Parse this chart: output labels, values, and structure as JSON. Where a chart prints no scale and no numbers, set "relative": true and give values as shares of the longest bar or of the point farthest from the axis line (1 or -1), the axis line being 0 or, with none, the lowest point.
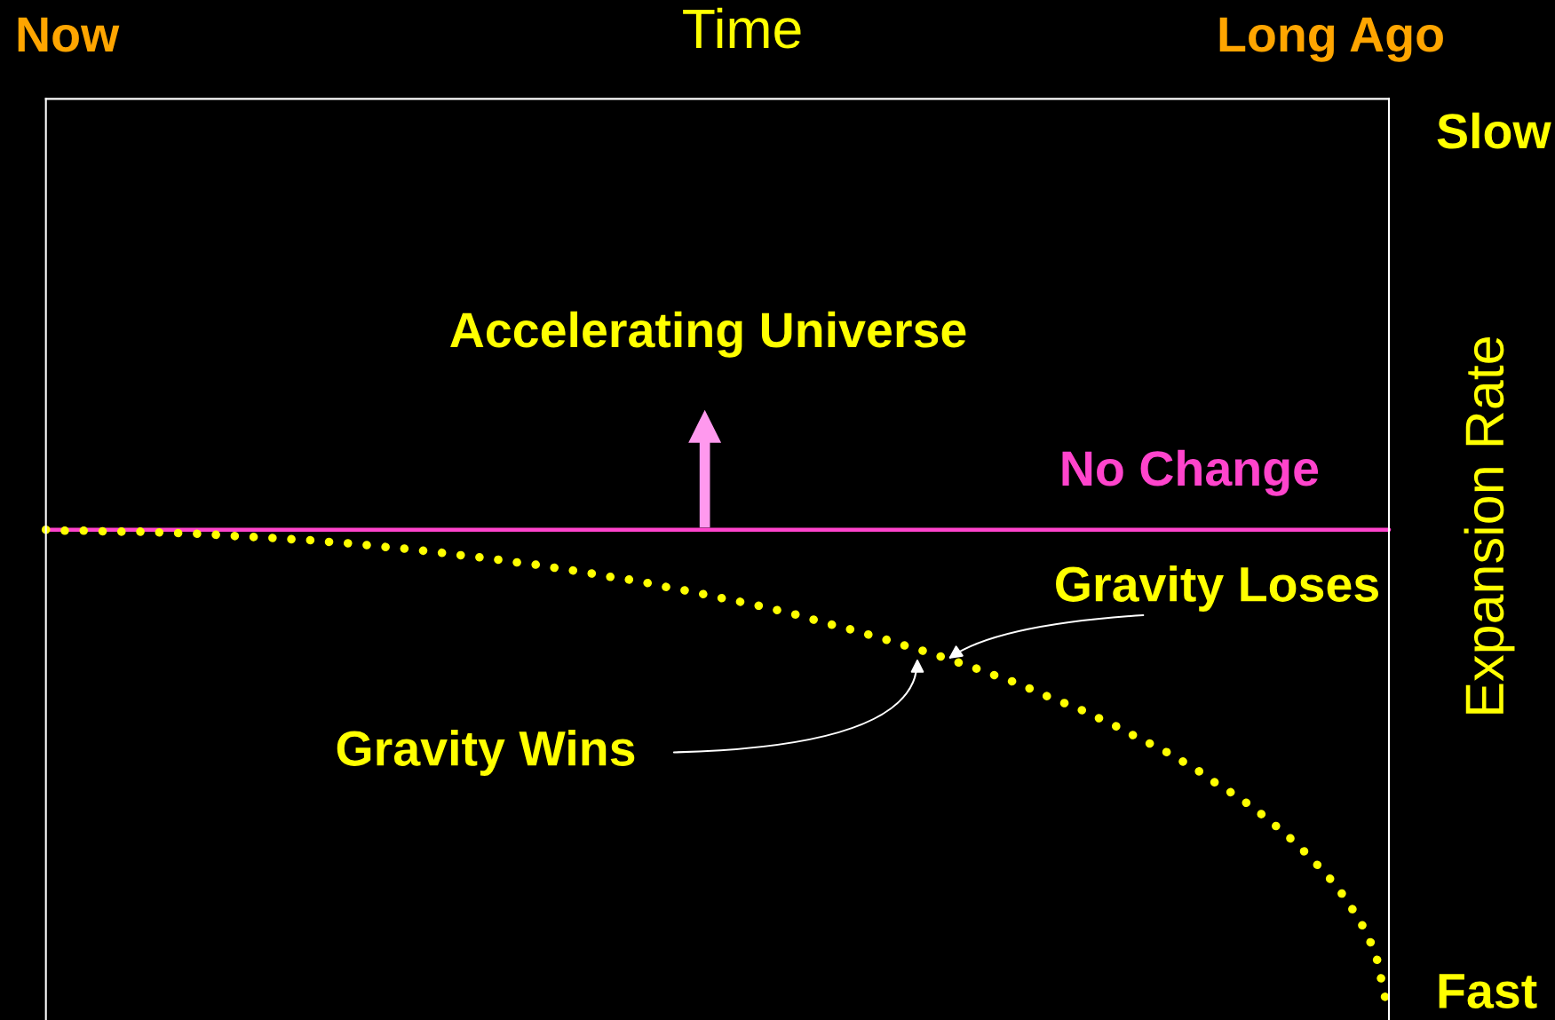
{
  "chart_data": {
    "type": "line",
    "relative": true,
    "ylabel": "Expansion Rate",
    "categories": [
      null,
      null,
      null,
      null,
      null,
      null,
      null,
      null,
      null,
      null,
      null,
      null,
      null,
      null,
      null,
      null,
      null,
      null,
      null,
      null,
      null,
      null,
      null,
      null,
      null,
      null,
      null,
      null,
      null,
      null,
      null,
      null,
      null,
      null,
      null,
      null,
      null,
      null,
      null,
      null,
      null,
      null,
      null,
      null,
      null,
      null,
      null,
      null,
      null,
      null,
      null,
      null,
      null,
      null,
      null,
      null,
      null,
      null,
      null,
      null,
      null,
      null,
      null,
      null,
      null,
      null,
      null,
      null,
      null,
      null,
      null,
      null,
      null,
      null,
      null,
      null,
      null,
      null,
      null,
      null,
      null,
      null,
      null,
      null,
      null,
      null,
      null,
      null,
      null,
      null,
      null,
      null,
      null,
      null,
      null,
      null,
      null,
      null,
      null,
      null,
      null
    ],
    "series": [
      {
        "name": "No Change",
        "color": "#ff44cc",
        "line_style": "solid",
        "values": [
          1,
          1,
          1,
          1,
          1,
          1,
          1,
          1,
          1,
          1,
          1,
          1,
          1,
          1,
          1,
          1,
          1,
          1,
          1,
          1,
          1,
          1,
          1,
          1,
          1,
          1,
          1,
          1,
          1,
          1,
          1,
          1,
          1,
          1,
          1,
          1,
          1,
          1,
          1,
          1,
          1,
          1,
          1,
          1,
          1,
          1,
          1,
          1,
          1,
          1,
          1,
          1,
          1,
          1,
          1,
          1,
          1,
          1,
          1,
          1,
          1,
          1,
          1,
          1,
          1,
          1,
          1,
          1,
          1,
          1,
          1,
          1,
          1,
          1,
          1,
          1,
          1,
          1,
          1,
          1,
          1,
          1,
          1,
          1,
          1,
          1,
          1,
          1,
          1,
          1,
          1,
          1,
          1,
          1,
          1,
          1,
          1,
          1,
          1,
          1,
          1
        ]
      },
      {
        "color": "#ffff00",
        "line_style": "dotted",
        "values": [
          1.0,
          0.998,
          0.998,
          0.998,
          0.997,
          0.996,
          0.996,
          0.996,
          0.995,
          0.994,
          0.993,
          0.992,
          0.991,
          0.989,
          0.987,
          0.986,
          0.984,
          0.983,
          0.981,
          0.979,
          0.978,
          0.975,
          0.973,
          0.971,
          0.968,
          0.965,
          0.963,
          0.96,
          0.957,
          0.954,
          0.951,
          0.947,
          0.944,
          0.941,
          0.937,
          0.933,
          0.93,
          0.926,
          0.921,
          0.917,
          0.913,
          0.908,
          0.903,
          0.899,
          0.895,
          0.889,
          0.883,
          0.878,
          0.873,
          0.867,
          0.861,
          0.855,
          0.85,
          0.844,
          0.837,
          0.831,
          0.824,
          0.816,
          0.808,
          0.801,
          0.794,
          0.786,
          0.778,
          0.77,
          0.761,
          0.753,
          0.745,
          0.735,
          0.726,
          0.717,
          0.706,
          0.697,
          0.687,
          0.676,
          0.663,
          0.652,
          0.641,
          0.63,
          0.617,
          0.604,
          0.591,
          0.576,
          0.562,
          0.549,
          0.533,
          0.517,
          0.5,
          0.48,
          0.463,
          0.445,
          0.425,
          0.403,
          0.38,
          0.356,
          0.329,
          0.3,
          0.269,
          0.231,
          0.186,
          0.129,
          0.0
        ]
      }
    ],
    "annotations": [
      "Now",
      "Time",
      "Long Ago",
      "Slow",
      "Accelerating Universe",
      "Gravity Loses",
      "Gravity Wins",
      "Fast"
    ]
  }
}
